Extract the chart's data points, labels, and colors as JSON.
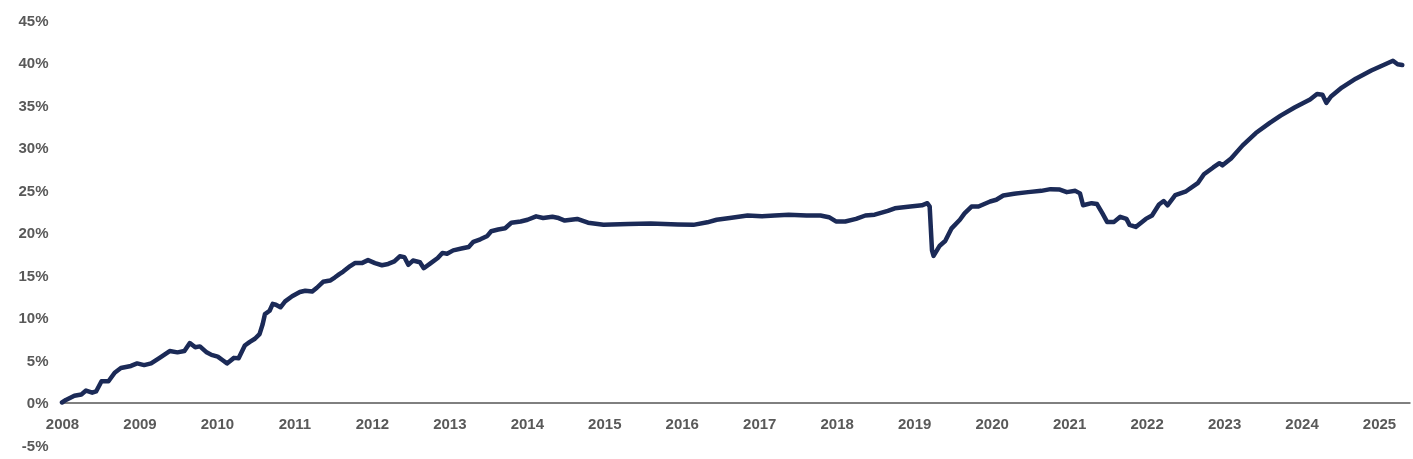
{
  "chart_data": {
    "type": "line",
    "x": [
      2008.0,
      2008.05,
      2008.16,
      2008.25,
      2008.31,
      2008.39,
      2008.44,
      2008.51,
      2008.6,
      2008.68,
      2008.76,
      2008.89,
      2008.97,
      2009.06,
      2009.15,
      2009.26,
      2009.39,
      2009.49,
      2009.58,
      2009.65,
      2009.72,
      2009.78,
      2009.86,
      2009.93,
      2010.01,
      2010.07,
      2010.13,
      2010.22,
      2010.28,
      2010.36,
      2010.42,
      2010.49,
      2010.55,
      2010.59,
      2010.62,
      2010.68,
      2010.72,
      2010.76,
      2010.82,
      2010.88,
      2010.97,
      2011.07,
      2011.14,
      2011.23,
      2011.29,
      2011.37,
      2011.46,
      2011.52,
      2011.58,
      2011.63,
      2011.72,
      2011.78,
      2011.87,
      2011.95,
      2012.04,
      2012.13,
      2012.21,
      2012.29,
      2012.36,
      2012.42,
      2012.47,
      2012.53,
      2012.62,
      2012.67,
      2012.76,
      2012.85,
      2012.91,
      2012.97,
      2013.05,
      2013.17,
      2013.25,
      2013.31,
      2013.4,
      2013.49,
      2013.54,
      2013.63,
      2013.72,
      2013.8,
      2013.92,
      2014.01,
      2014.12,
      2014.21,
      2014.33,
      2014.41,
      2014.49,
      2014.65,
      2014.79,
      2014.99,
      2015.31,
      2015.6,
      2015.95,
      2016.15,
      2016.33,
      2016.45,
      2016.62,
      2016.85,
      2017.03,
      2017.2,
      2017.38,
      2017.61,
      2017.79,
      2017.9,
      2017.99,
      2018.11,
      2018.25,
      2018.37,
      2018.49,
      2018.66,
      2018.75,
      2018.95,
      2019.1,
      2019.17,
      2019.2,
      2019.23,
      2019.25,
      2019.33,
      2019.4,
      2019.48,
      2019.59,
      2019.65,
      2019.74,
      2019.83,
      2019.89,
      2019.98,
      2020.06,
      2020.15,
      2020.29,
      2020.47,
      2020.64,
      2020.76,
      2020.88,
      2020.97,
      2021.08,
      2021.14,
      2021.18,
      2021.29,
      2021.36,
      2021.43,
      2021.49,
      2021.58,
      2021.66,
      2021.74,
      2021.78,
      2021.86,
      2021.99,
      2022.07,
      2022.16,
      2022.22,
      2022.27,
      2022.37,
      2022.51,
      2022.66,
      2022.74,
      2022.86,
      2022.94,
      2022.98,
      2023.09,
      2023.24,
      2023.41,
      2023.59,
      2023.73,
      2023.91,
      2024.11,
      2024.2,
      2024.27,
      2024.32,
      2024.38,
      2024.52,
      2024.7,
      2024.9,
      2025.08,
      2025.18,
      2025.24,
      2025.3
    ],
    "series": [
      {
        "color": "#1b2a57",
        "values": [
          0,
          0.3,
          0.8,
          0.95,
          1.4,
          1.15,
          1.3,
          2.5,
          2.5,
          3.5,
          4.05,
          4.3,
          4.6,
          4.4,
          4.6,
          5.25,
          6.05,
          5.9,
          6.05,
          7.0,
          6.5,
          6.6,
          5.95,
          5.6,
          5.4,
          5.0,
          4.6,
          5.25,
          5.2,
          6.7,
          7.1,
          7.5,
          8.05,
          9.2,
          10.4,
          10.8,
          11.6,
          11.5,
          11.2,
          11.9,
          12.5,
          13.0,
          13.15,
          13.05,
          13.5,
          14.2,
          14.35,
          14.7,
          15.1,
          15.4,
          16.05,
          16.4,
          16.4,
          16.75,
          16.4,
          16.15,
          16.3,
          16.6,
          17.2,
          17.1,
          16.2,
          16.7,
          16.5,
          15.8,
          16.4,
          17.0,
          17.6,
          17.5,
          17.9,
          18.15,
          18.3,
          18.9,
          19.2,
          19.6,
          20.15,
          20.35,
          20.5,
          21.15,
          21.3,
          21.5,
          21.9,
          21.7,
          21.85,
          21.7,
          21.4,
          21.6,
          21.15,
          20.9,
          21.0,
          21.05,
          20.95,
          20.9,
          21.2,
          21.5,
          21.7,
          22.0,
          21.9,
          22.0,
          22.1,
          22.0,
          22.0,
          21.8,
          21.3,
          21.3,
          21.6,
          22.0,
          22.1,
          22.55,
          22.85,
          23.05,
          23.2,
          23.45,
          23.05,
          17.9,
          17.25,
          18.45,
          19.0,
          20.45,
          21.5,
          22.25,
          23.05,
          23.05,
          23.3,
          23.65,
          23.85,
          24.35,
          24.55,
          24.75,
          24.9,
          25.1,
          25.05,
          24.75,
          24.9,
          24.6,
          23.2,
          23.45,
          23.35,
          22.25,
          21.25,
          21.25,
          21.85,
          21.6,
          20.9,
          20.65,
          21.6,
          22.0,
          23.3,
          23.7,
          23.2,
          24.4,
          24.85,
          25.8,
          26.85,
          27.65,
          28.15,
          27.9,
          28.7,
          30.25,
          31.7,
          32.9,
          33.75,
          34.7,
          35.65,
          36.3,
          36.2,
          35.25,
          36.0,
          37.05,
          38.1,
          39.05,
          39.8,
          40.2,
          39.8,
          39.7
        ]
      }
    ],
    "xlim": [
      2008,
      2025.4
    ],
    "xticks": [
      2008,
      2009,
      2010,
      2011,
      2012,
      2013,
      2014,
      2015,
      2016,
      2017,
      2018,
      2019,
      2020,
      2021,
      2022,
      2023,
      2024,
      2025
    ],
    "ylim": [
      -5,
      45
    ],
    "yticks": [
      {
        "value": -5,
        "label": "-5%"
      },
      {
        "value": 0,
        "label": "0%"
      },
      {
        "value": 5,
        "label": "5%"
      },
      {
        "value": 10,
        "label": "10%"
      },
      {
        "value": 15,
        "label": "15%"
      },
      {
        "value": 20,
        "label": "20%"
      },
      {
        "value": 25,
        "label": "25%"
      },
      {
        "value": 30,
        "label": "30%"
      },
      {
        "value": 35,
        "label": "35%"
      },
      {
        "value": 40,
        "label": "40%"
      },
      {
        "value": 45,
        "label": "45%"
      }
    ],
    "grid": false,
    "marker": "none",
    "line_style": "solid"
  }
}
